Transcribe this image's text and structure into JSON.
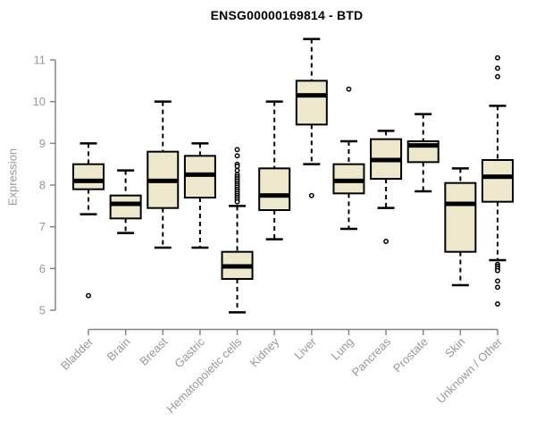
{
  "chart_data": {
    "type": "boxplot",
    "title": "ENSG00000169814 - BTD",
    "ylabel": "Expression",
    "xlabel": "",
    "ylim": [
      5,
      11
    ],
    "y_ticks": [
      5,
      6,
      7,
      8,
      9,
      10,
      11
    ],
    "grid": false,
    "legend": "none",
    "categories": [
      "Bladder",
      "Brain",
      "Breast",
      "Gastric",
      "Hematopoietic cells",
      "Kidney",
      "Liver",
      "Lung",
      "Pancreas",
      "Prostate",
      "Skin",
      "Unknown / Other"
    ],
    "boxes": [
      {
        "category": "Bladder",
        "whisker_low": 7.3,
        "q1": 7.9,
        "median": 8.1,
        "q3": 8.5,
        "whisker_high": 9.0,
        "outliers": [
          5.35
        ]
      },
      {
        "category": "Brain",
        "whisker_low": 6.85,
        "q1": 7.2,
        "median": 7.55,
        "q3": 7.75,
        "whisker_high": 8.35,
        "outliers": []
      },
      {
        "category": "Breast",
        "whisker_low": 6.5,
        "q1": 7.45,
        "median": 8.1,
        "q3": 8.8,
        "whisker_high": 10.0,
        "outliers": []
      },
      {
        "category": "Gastric",
        "whisker_low": 6.5,
        "q1": 7.7,
        "median": 8.25,
        "q3": 8.7,
        "whisker_high": 9.0,
        "outliers": []
      },
      {
        "category": "Hematopoietic cells",
        "whisker_low": 4.95,
        "q1": 5.75,
        "median": 6.05,
        "q3": 6.4,
        "whisker_high": 7.5,
        "outliers": [
          8.85,
          8.7,
          8.5,
          8.45,
          8.35,
          8.25,
          8.2,
          8.15,
          8.1,
          8.05,
          8.0,
          7.95,
          7.9,
          7.85,
          7.8,
          7.75,
          7.7,
          7.65,
          7.6
        ]
      },
      {
        "category": "Kidney",
        "whisker_low": 6.7,
        "q1": 7.4,
        "median": 7.75,
        "q3": 8.4,
        "whisker_high": 10.0,
        "outliers": []
      },
      {
        "category": "Liver",
        "whisker_low": 8.5,
        "q1": 9.45,
        "median": 10.15,
        "q3": 10.5,
        "whisker_high": 11.5,
        "outliers": [
          7.75
        ]
      },
      {
        "category": "Lung",
        "whisker_low": 6.95,
        "q1": 7.8,
        "median": 8.1,
        "q3": 8.5,
        "whisker_high": 9.05,
        "outliers": [
          10.3
        ]
      },
      {
        "category": "Pancreas",
        "whisker_low": 7.45,
        "q1": 8.15,
        "median": 8.6,
        "q3": 9.1,
        "whisker_high": 9.3,
        "outliers": [
          6.65
        ]
      },
      {
        "category": "Prostate",
        "whisker_low": 7.85,
        "q1": 8.55,
        "median": 8.95,
        "q3": 9.05,
        "whisker_high": 9.7,
        "outliers": []
      },
      {
        "category": "Skin",
        "whisker_low": 5.6,
        "q1": 6.4,
        "median": 7.55,
        "q3": 8.05,
        "whisker_high": 8.4,
        "outliers": []
      },
      {
        "category": "Unknown / Other",
        "whisker_low": 6.2,
        "q1": 7.6,
        "median": 8.2,
        "q3": 8.6,
        "whisker_high": 9.9,
        "outliers": [
          11.05,
          10.8,
          10.6,
          6.1,
          6.05,
          6.0,
          5.95,
          5.7,
          5.55,
          5.15
        ]
      }
    ]
  },
  "style": {
    "box_fill": "#EDE8CB",
    "box_stroke": "#000000",
    "median_color": "#000000",
    "whisker_color": "#000000",
    "outlier_fill": "#ffffff",
    "axis_color": "#80868b",
    "tick_label_color": "#93989d",
    "title_color": "#000000",
    "background": "#ffffff"
  }
}
